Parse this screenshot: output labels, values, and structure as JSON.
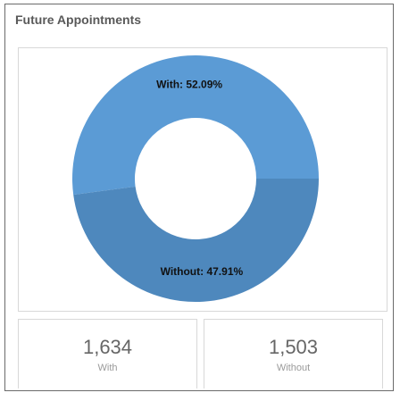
{
  "widget": {
    "title": "Future Appointments"
  },
  "chart_data": {
    "type": "pie",
    "variant": "donut",
    "slices": [
      {
        "name": "With",
        "value": 52.09,
        "label": "With: 52.09%",
        "color": "#5b9bd5"
      },
      {
        "name": "Without",
        "value": 47.91,
        "label": "Without: 47.91%",
        "color": "#4e88bd"
      }
    ]
  },
  "stats": [
    {
      "value": "1,634",
      "label": "With"
    },
    {
      "value": "1,503",
      "label": "Without"
    }
  ]
}
